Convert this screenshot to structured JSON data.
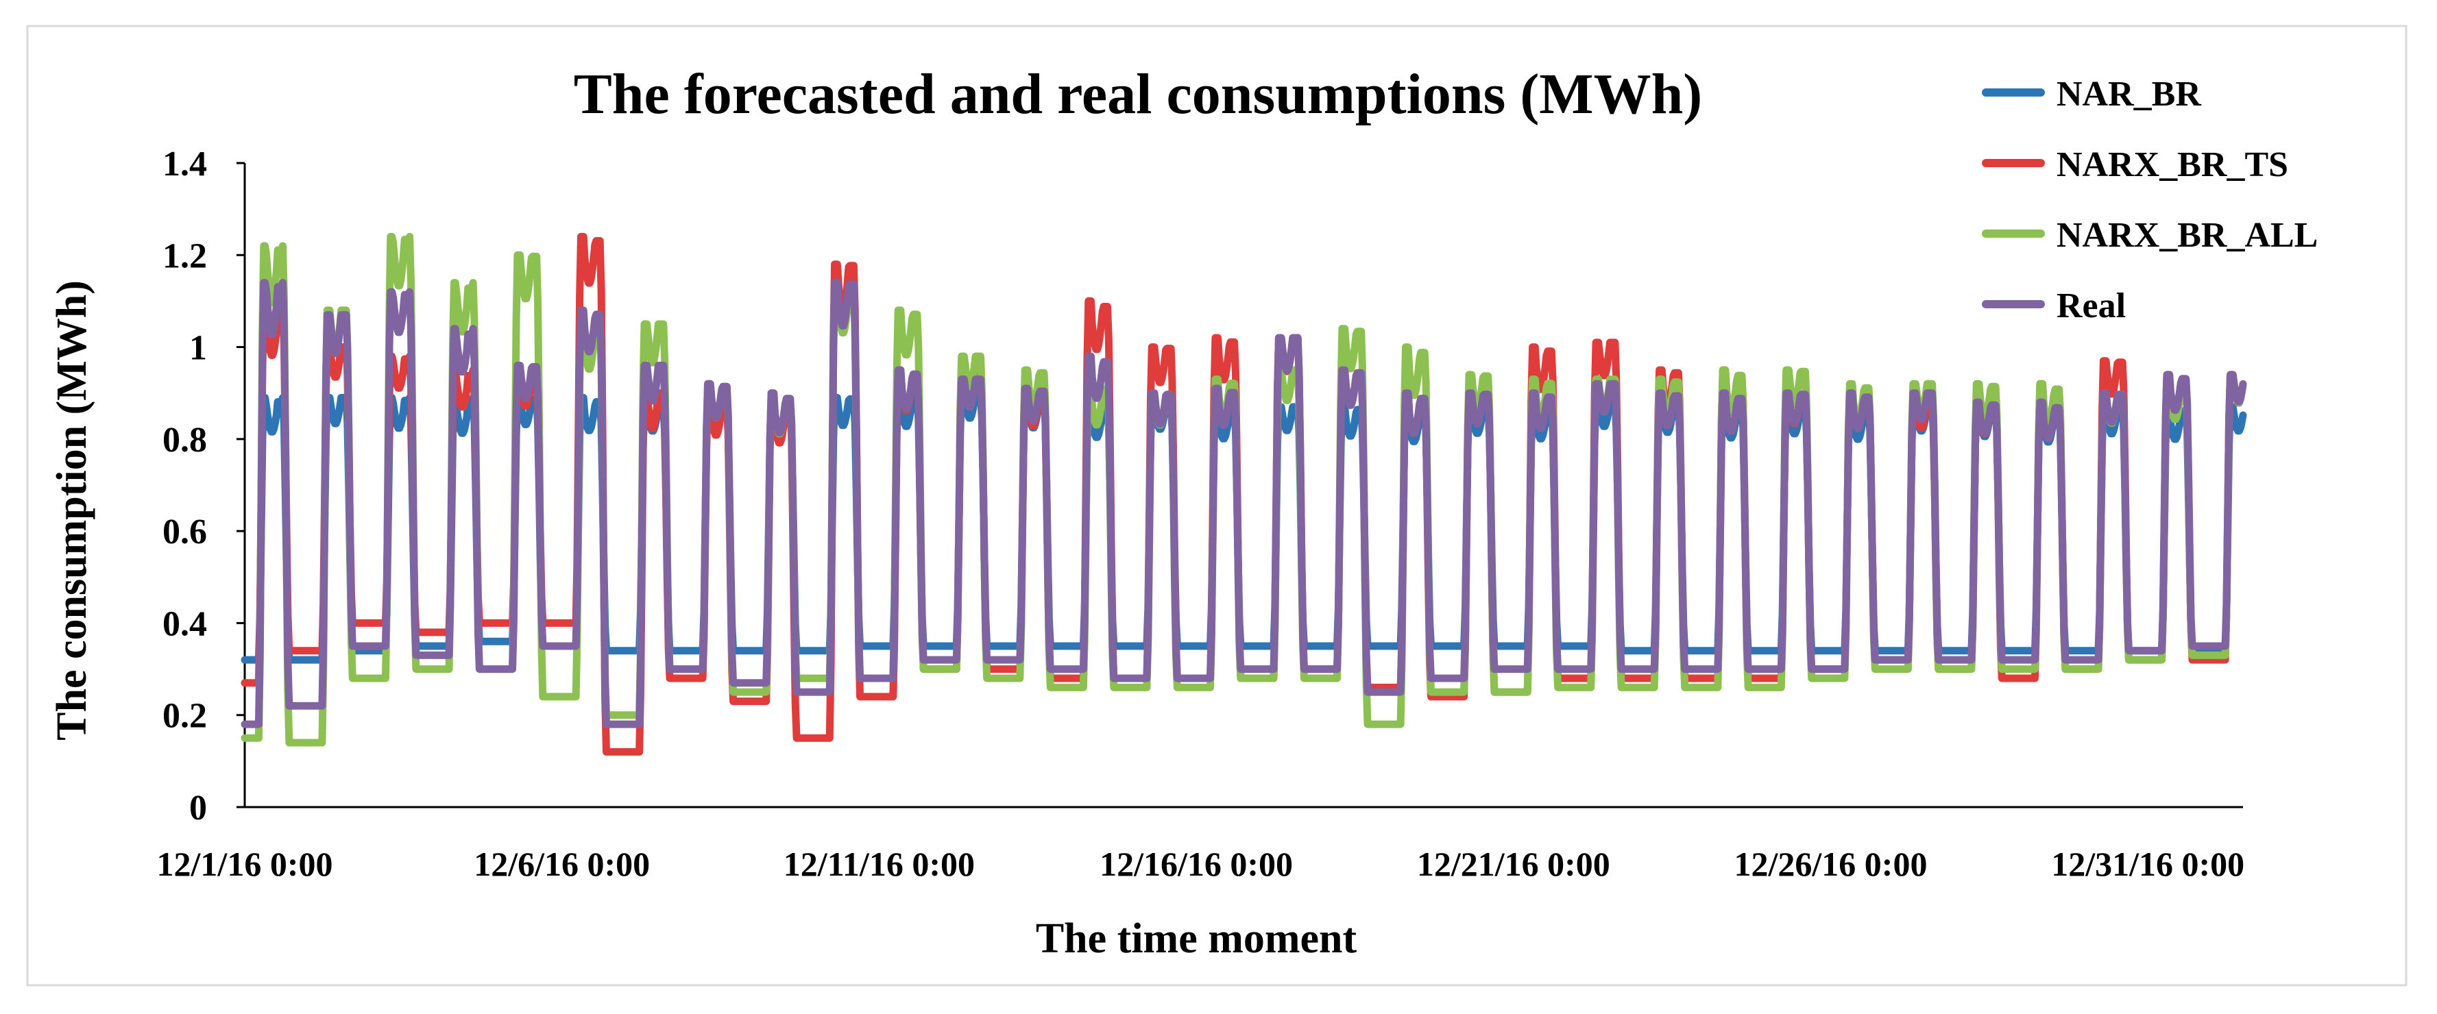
{
  "chart_data": {
    "type": "line",
    "title": "The forecasted and real consumptions (MWh)",
    "xlabel": "The time moment",
    "ylabel": "The consumption (MWh)",
    "ylim": [
      0,
      1.4
    ],
    "y_ticks": [
      0,
      0.2,
      0.4,
      0.6,
      0.8,
      1,
      1.2,
      1.4
    ],
    "y_tick_labels": [
      "0",
      "0.2",
      "0.4",
      "0.6",
      "0.8",
      "1",
      "1.2",
      "1.4"
    ],
    "xlim_days": [
      0,
      31.5
    ],
    "x_tick_days": [
      0,
      5,
      10,
      15,
      20,
      25,
      30
    ],
    "x_tick_labels": [
      "12/1/16 0:00",
      "12/6/16 0:00",
      "12/11/16 0:00",
      "12/16/16 0:00",
      "12/21/16 0:00",
      "12/26/16 0:00",
      "12/31/16 0:00"
    ],
    "grid": false,
    "legend_position": "top-right",
    "colors": {
      "NAR_BR": "#2e75b6",
      "NARX_BR_TS": "#e03c3c",
      "NARX_BR_ALL": "#8cc152",
      "Real": "#8064a2"
    },
    "series_note": "Daily cycle per series: peak value (daytime) and trough value (night) for each of the 32 days from 12/1/16 to 1/1/17.",
    "series": [
      {
        "name": "NAR_BR",
        "color": "#2e75b6",
        "peaks": [
          0.89,
          0.89,
          0.89,
          0.89,
          0.89,
          0.89,
          0.87,
          0.88,
          0.88,
          0.89,
          0.9,
          0.9,
          0.89,
          0.88,
          0.88,
          0.87,
          0.87,
          0.87,
          0.87,
          0.87,
          0.87,
          0.88,
          0.88,
          0.88,
          0.87,
          0.87,
          0.87,
          0.87,
          0.87,
          0.87,
          0.87,
          0.87
        ],
        "troughs": [
          0.32,
          0.32,
          0.34,
          0.35,
          0.36,
          0.35,
          0.34,
          0.34,
          0.34,
          0.34,
          0.35,
          0.35,
          0.35,
          0.35,
          0.35,
          0.35,
          0.35,
          0.35,
          0.35,
          0.35,
          0.35,
          0.35,
          0.34,
          0.34,
          0.34,
          0.34,
          0.34,
          0.34,
          0.34,
          0.34,
          0.34,
          0.34
        ]
      },
      {
        "name": "NARX_BR_TS",
        "color": "#e03c3c",
        "peaks": [
          1.08,
          1.0,
          0.98,
          0.95,
          0.93,
          1.24,
          0.9,
          0.88,
          0.88,
          1.18,
          0.95,
          0.95,
          0.9,
          1.1,
          1.0,
          1.02,
          1.02,
          0.95,
          0.9,
          0.92,
          1.0,
          1.01,
          0.95,
          0.95,
          0.9,
          0.9,
          0.88,
          0.88,
          0.92,
          0.97,
          0.94,
          0.94
        ],
        "troughs": [
          0.27,
          0.34,
          0.4,
          0.38,
          0.4,
          0.4,
          0.12,
          0.28,
          0.23,
          0.15,
          0.24,
          0.3,
          0.3,
          0.28,
          0.28,
          0.28,
          0.28,
          0.3,
          0.26,
          0.24,
          0.25,
          0.28,
          0.28,
          0.28,
          0.28,
          0.3,
          0.32,
          0.3,
          0.28,
          0.3,
          0.32,
          0.32
        ]
      },
      {
        "name": "NARX_BR_ALL",
        "color": "#8cc152",
        "peaks": [
          1.22,
          1.08,
          1.24,
          1.14,
          1.2,
          1.05,
          1.05,
          0.92,
          0.9,
          1.12,
          1.08,
          0.98,
          0.95,
          0.92,
          0.9,
          0.93,
          0.95,
          1.04,
          1.0,
          0.94,
          0.93,
          0.93,
          0.93,
          0.95,
          0.95,
          0.92,
          0.92,
          0.92,
          0.92,
          0.9,
          0.92,
          0.94
        ],
        "troughs": [
          0.15,
          0.14,
          0.28,
          0.3,
          0.3,
          0.24,
          0.2,
          0.3,
          0.25,
          0.28,
          0.28,
          0.3,
          0.28,
          0.26,
          0.26,
          0.26,
          0.28,
          0.28,
          0.18,
          0.25,
          0.25,
          0.26,
          0.26,
          0.26,
          0.26,
          0.28,
          0.3,
          0.3,
          0.3,
          0.3,
          0.32,
          0.33
        ]
      },
      {
        "name": "Real",
        "color": "#8064a2",
        "peaks": [
          1.14,
          1.07,
          1.12,
          1.04,
          0.96,
          1.08,
          0.96,
          0.92,
          0.9,
          1.14,
          0.95,
          0.93,
          0.91,
          0.98,
          0.9,
          0.91,
          1.02,
          0.95,
          0.9,
          0.9,
          0.9,
          0.92,
          0.9,
          0.9,
          0.9,
          0.9,
          0.9,
          0.88,
          0.88,
          0.9,
          0.94,
          0.94
        ],
        "troughs": [
          0.18,
          0.22,
          0.35,
          0.33,
          0.3,
          0.35,
          0.18,
          0.3,
          0.27,
          0.25,
          0.28,
          0.32,
          0.32,
          0.3,
          0.28,
          0.28,
          0.3,
          0.3,
          0.25,
          0.28,
          0.3,
          0.3,
          0.3,
          0.3,
          0.3,
          0.3,
          0.32,
          0.32,
          0.32,
          0.32,
          0.34,
          0.35
        ]
      }
    ]
  }
}
